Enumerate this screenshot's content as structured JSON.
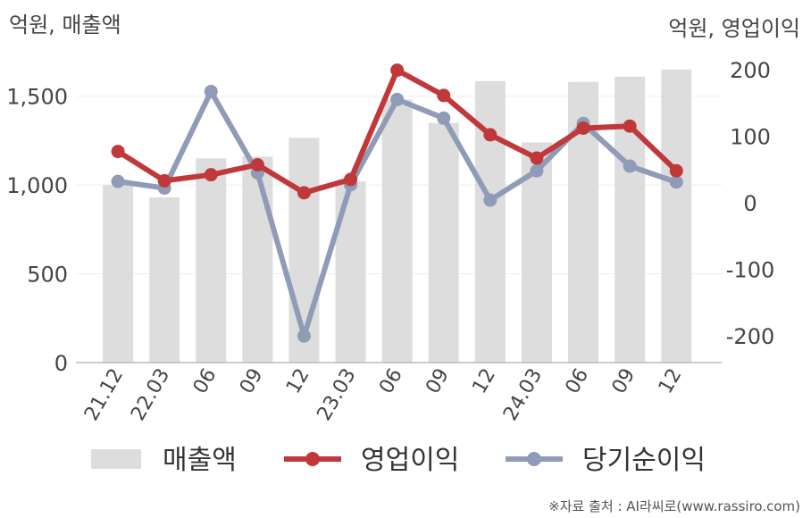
{
  "chart_data": {
    "type": "bar+line",
    "left_axis_unit": "억원, 매출액",
    "right_axis_unit": "억원, 영업이익",
    "categories": [
      "21.12",
      "22.03",
      "06",
      "09",
      "12",
      "23.03",
      "06",
      "09",
      "12",
      "24.03",
      "06",
      "09",
      "12"
    ],
    "left_axis": {
      "ylim": [
        0,
        1800
      ],
      "ticks": [
        0,
        500,
        1000,
        1500
      ]
    },
    "right_axis": {
      "ylim": [
        -240,
        240
      ],
      "ticks": [
        -200,
        -100,
        0,
        100,
        200
      ]
    },
    "bar_series": {
      "name": "매출액",
      "color": "#dddddd",
      "values": [
        1000,
        930,
        1150,
        1160,
        1265,
        1020,
        1480,
        1350,
        1585,
        1240,
        1580,
        1610,
        1650
      ]
    },
    "line_series": [
      {
        "name": "영업이익",
        "color": "#c1383a",
        "values": [
          77,
          33,
          42,
          57,
          15,
          35,
          199,
          161,
          102,
          67,
          112,
          115,
          48
        ]
      },
      {
        "name": "당기순이익",
        "color": "#8f9bb7",
        "values": [
          32,
          22,
          167,
          45,
          -200,
          27,
          155,
          127,
          4,
          48,
          119,
          55,
          31
        ]
      }
    ],
    "grid": true,
    "legend_position": "bottom"
  },
  "source_note": "※자료 출처 : AI라씨로(www.rassiro.com)"
}
